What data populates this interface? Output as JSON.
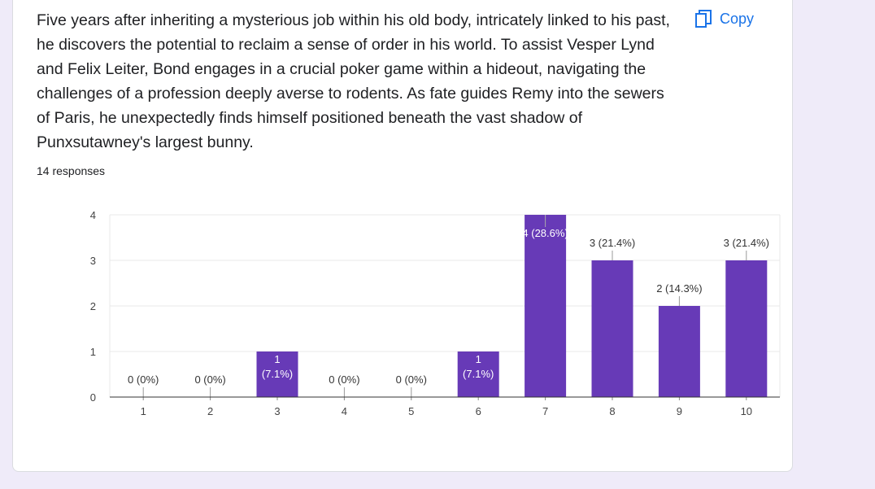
{
  "question": {
    "text": "Five years after inheriting a mysterious job within his old body, intricately linked to his past, he discovers the potential to reclaim a sense of order in his world. To assist Vesper Lynd and Felix Leiter, Bond engages in a crucial poker game within a hideout, navigating the challenges of a profession deeply averse to rodents. As fate guides Remy into the sewers of Paris, he unexpectedly finds himself positioned beneath the vast shadow of Punxsutawney's largest bunny."
  },
  "copy_button": {
    "label": "Copy",
    "icon": "copy-icon"
  },
  "responses_label": "14 responses",
  "colors": {
    "bar": "#673ab7",
    "copy": "#1a73e8",
    "grid": "#e8e8e8",
    "background": "#efebf9"
  },
  "chart_data": {
    "type": "bar",
    "categories": [
      "1",
      "2",
      "3",
      "4",
      "5",
      "6",
      "7",
      "8",
      "9",
      "10"
    ],
    "values": [
      0,
      0,
      1,
      0,
      0,
      1,
      4,
      3,
      2,
      3
    ],
    "data_labels": [
      "0 (0%)",
      "0 (0%)",
      "1 (7.1%)",
      "0 (0%)",
      "0 (0%)",
      "1 (7.1%)",
      "4 (28.6%)",
      "3 (21.4%)",
      "2 (14.3%)",
      "3 (21.4%)"
    ],
    "ylim": [
      0,
      4
    ],
    "yticks": [
      0,
      1,
      2,
      3,
      4
    ],
    "grid": true,
    "title": "",
    "xlabel": "",
    "ylabel": ""
  }
}
